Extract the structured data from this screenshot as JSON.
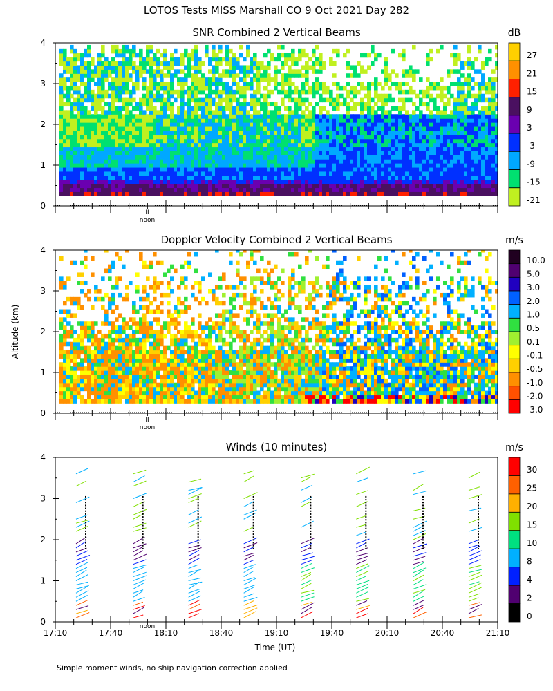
{
  "figure": {
    "title": "LOTOS Tests MISS Marshall CO   9 Oct 2021 Day 282",
    "ylabel": "Altitude (km)",
    "xlabel": "Time (UT)",
    "footnote": "Simple moment winds, no ship navigation correction applied",
    "noon_label": "noon",
    "noon_mark": "II"
  },
  "chart_data": [
    {
      "type": "heatmap",
      "title": "SNR Combined 2 Vertical Beams",
      "units": "dB",
      "ylim": [
        0,
        4
      ],
      "yticks": [
        "0",
        "1",
        "2",
        "3",
        "4"
      ],
      "colorbar_labels": [
        "27",
        "21",
        "15",
        "9",
        "3",
        "-3",
        "-9",
        "-15",
        "-21"
      ],
      "colorbar_colors": [
        "#ffd000",
        "#ff9000",
        "#ff2000",
        "#4a1060",
        "#6a00b0",
        "#0030ff",
        "#00a8ff",
        "#00e070",
        "#c0f020"
      ],
      "x_start_min": 1030,
      "x_end_min": 1270,
      "description_levels": {
        "0.25-0.35 km": "~9 to 15 dB",
        "0.35-0.8 km": "~-3 dB",
        "0.8-1.5 km": "~-9 to -3 dB",
        "1.5-3.5 km": "~-21 to -9 dB"
      }
    },
    {
      "type": "heatmap",
      "title": "Doppler Velocity Combined 2 Vertical Beams",
      "units": "m/s",
      "ylim": [
        0,
        4
      ],
      "yticks": [
        "0",
        "1",
        "2",
        "3",
        "4"
      ],
      "colorbar_labels": [
        "10.0",
        "5.0",
        "3.0",
        "2.0",
        "1.0",
        "0.5",
        "0.1",
        "-0.1",
        "-0.5",
        "-1.0",
        "-2.0",
        "-3.0"
      ],
      "colorbar_colors": [
        "#200020",
        "#500070",
        "#2000c0",
        "#0060ff",
        "#00b0ff",
        "#30e040",
        "#a0f030",
        "#ffff00",
        "#ffd000",
        "#ff9000",
        "#ff5000",
        "#ff0000"
      ]
    },
    {
      "type": "scatter",
      "title": "Winds (10 minutes)",
      "units": "m/s",
      "ylim": [
        0,
        4
      ],
      "yticks": [
        "0",
        "1",
        "2",
        "3",
        "4"
      ],
      "colorbar_labels": [
        "30",
        "25",
        "20",
        "15",
        "10",
        "8",
        "4",
        "2",
        "0"
      ],
      "colorbar_colors": [
        "#ff0000",
        "#ff6000",
        "#ffb000",
        "#80e000",
        "#00e080",
        "#00b0ff",
        "#0020ff",
        "#500070",
        "#000000"
      ],
      "x_tick_labels": [
        "17:10",
        "17:40",
        "18:10",
        "18:40",
        "19:10",
        "19:40",
        "20:10",
        "20:40",
        "21:10"
      ],
      "profile_times_min": [
        1045,
        1076,
        1106,
        1136,
        1167,
        1197,
        1228,
        1258
      ]
    }
  ]
}
